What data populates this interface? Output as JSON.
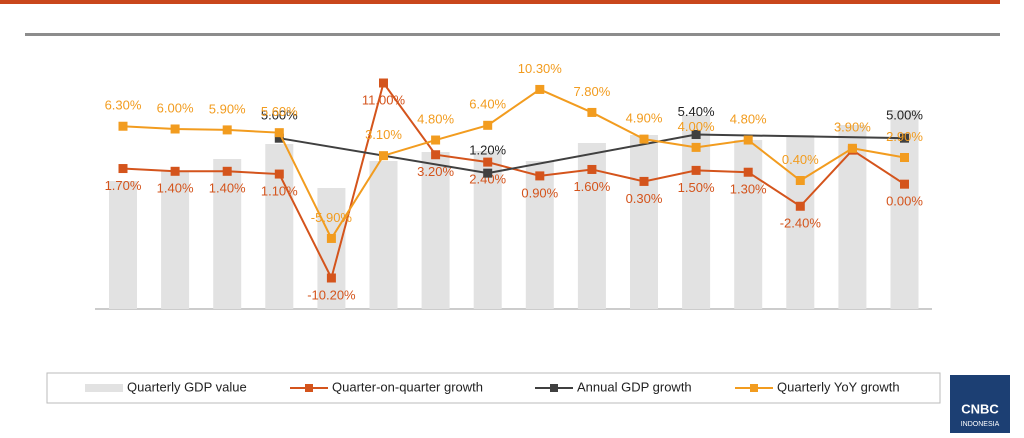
{
  "chart_data": {
    "type": "combo",
    "categories": [
      null,
      null,
      null,
      null,
      null,
      null,
      null,
      null,
      null,
      null,
      null,
      null,
      null,
      null,
      null,
      null
    ],
    "series": [
      {
        "name": "Quarterly GDP value",
        "type": "bar",
        "color": "#e2e2e2",
        "values": [
          128,
          138,
          150,
          165,
          121,
          148,
          157,
          158,
          148,
          166,
          174,
          194,
          169,
          174,
          184,
          199
        ]
      },
      {
        "name": "Quarter-on-quarter growth",
        "type": "line",
        "color": "#d4541c",
        "values": [
          1.7,
          1.4,
          1.4,
          1.1,
          -10.2,
          11.0,
          3.2,
          2.4,
          0.9,
          1.6,
          0.3,
          1.5,
          1.3,
          -2.4,
          3.7,
          0.0
        ],
        "value_labels": [
          "1.70%",
          "1.40%",
          "1.40%",
          "1.10%",
          "-10.20%",
          "11.00%",
          "3.20%",
          "2.40%",
          "0.90%",
          "1.60%",
          "0.30%",
          "1.50%",
          "1.30%",
          "-2.40%",
          null,
          "0.00%"
        ]
      },
      {
        "name": "Annual GDP growth",
        "type": "line",
        "color": "#404040",
        "positions": [
          3,
          7,
          11,
          15
        ],
        "values": [
          5.0,
          1.2,
          5.4,
          5.0
        ],
        "value_labels": [
          "5.00%",
          "1.20%",
          "5.40%",
          "5.00%"
        ]
      },
      {
        "name": "Quarterly YoY growth",
        "type": "line",
        "color": "#f29c1f",
        "values": [
          6.3,
          6.0,
          5.9,
          5.6,
          -5.9,
          3.1,
          4.8,
          6.4,
          10.3,
          7.8,
          4.9,
          4.0,
          4.8,
          0.4,
          3.9,
          2.9
        ],
        "value_labels": [
          "6.30%",
          "6.00%",
          "5.90%",
          "5.60%",
          "-5.90%",
          "3.10%",
          "4.80%",
          "6.40%",
          "10.30%",
          "7.80%",
          "4.90%",
          "4.00%",
          "4.80%",
          "0.40%",
          "3.90%",
          "2.90%"
        ]
      }
    ]
  },
  "logo": {
    "name": "CNBC",
    "region": "INDONESIA"
  }
}
